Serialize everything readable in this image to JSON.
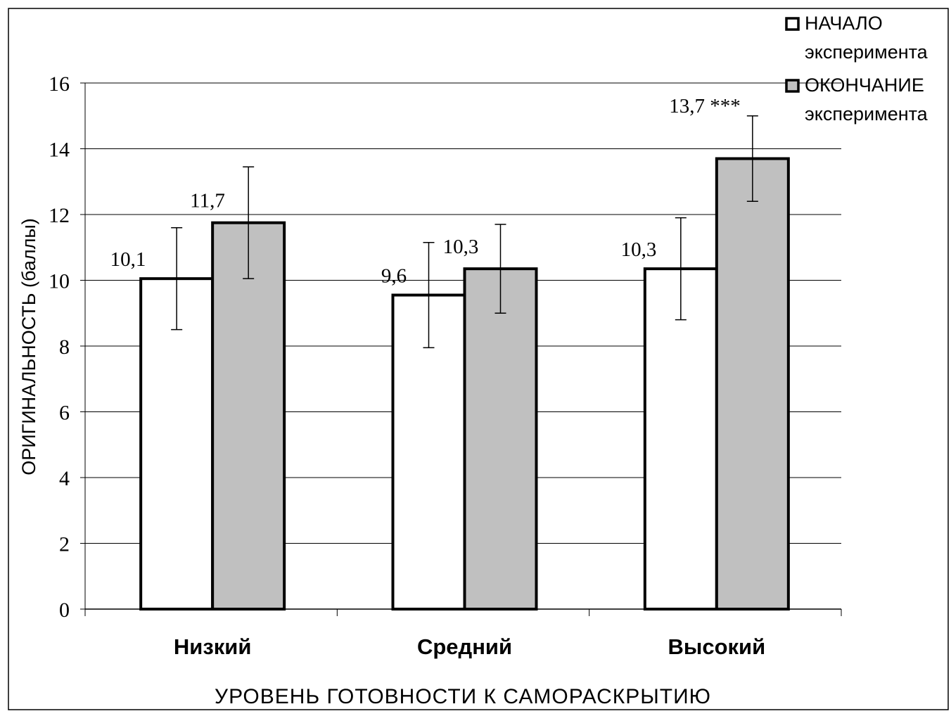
{
  "chart_data": {
    "type": "bar",
    "xlabel": "УРОВЕНЬ ГОТОВНОСТИ К САМОРАСКРЫТИЮ",
    "ylabel": "ОРИГИНАЛЬНОСТЬ (баллы)",
    "categories": [
      "Низкий",
      "Средний",
      "Высокий"
    ],
    "ylim": [
      0,
      16
    ],
    "yticks": [
      0,
      2,
      4,
      6,
      8,
      10,
      12,
      14,
      16
    ],
    "ytick_labels": [
      "0",
      "2",
      "4",
      "6",
      "8",
      "10",
      "12",
      "14",
      "16"
    ],
    "grid": true,
    "legend_position": "top-right",
    "series": [
      {
        "name": "НАЧАЛО эксперимента",
        "color": "#ffffff",
        "values": [
          10.05,
          9.55,
          10.35
        ],
        "errors": [
          1.55,
          1.6,
          1.55
        ],
        "labels": [
          "10,1",
          "9,6",
          "10,3"
        ]
      },
      {
        "name": "ОКОНЧАНИЕ эксперимента",
        "color": "#c0c0c0",
        "values": [
          11.75,
          10.35,
          13.7
        ],
        "errors": [
          1.7,
          1.35,
          1.3
        ],
        "labels": [
          "11,7",
          "10,3",
          "13,7 ***"
        ]
      }
    ]
  }
}
